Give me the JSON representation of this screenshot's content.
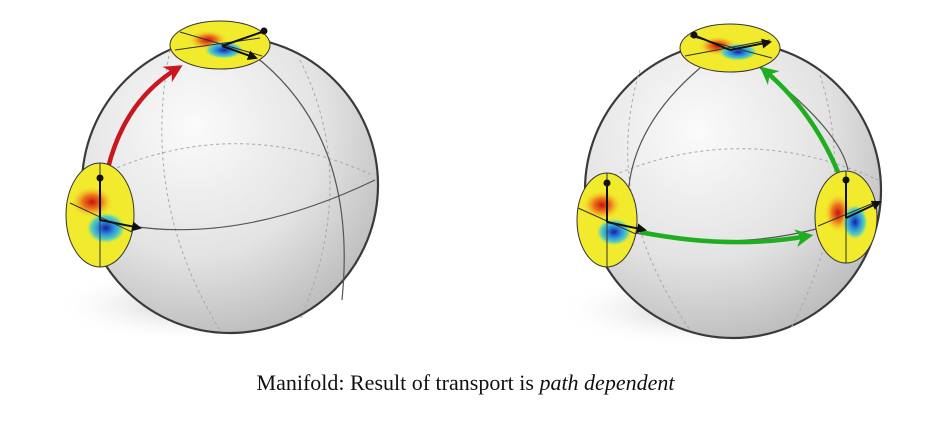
{
  "caption": {
    "text": "Manifold: Result of transport is ",
    "emphasis": "path dependent"
  },
  "colors": {
    "sphere_edge": "#3a3a3a",
    "sphere_light": "#f4f4f4",
    "sphere_dark": "#b9b9b9",
    "shadow": "#dcdcdc",
    "great_circle": "#555555",
    "hidden_circle": "#a8a8a8",
    "left_path_arrow": "#c8171e",
    "right_path_arrow": "#1fae1f",
    "frame_vector": "#111111",
    "filter_background": "#f2ea2c",
    "filter_red": "#e2261b",
    "filter_blue": "#1f3fd6"
  },
  "icons": [
    "sphere",
    "filter-disc",
    "frame-vectors",
    "transport-arrow"
  ]
}
